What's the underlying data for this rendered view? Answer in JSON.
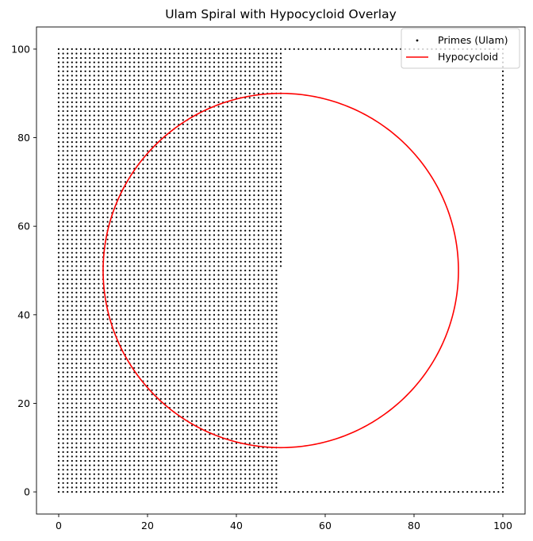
{
  "chart_data": {
    "type": "scatter",
    "title": "Ulam Spiral with Hypocycloid Overlay",
    "xlabel": "",
    "ylabel": "",
    "xlim": [
      -5,
      105
    ],
    "ylim": [
      -5,
      105
    ],
    "xticks": [
      0,
      20,
      40,
      60,
      80,
      100
    ],
    "yticks": [
      0,
      20,
      40,
      60,
      80,
      100
    ],
    "grid": false,
    "legend_position": "top-right",
    "series": [
      {
        "name": "Primes (Ulam)",
        "kind": "scatter",
        "color": "#000000",
        "point_regions": [
          {
            "x_from": 0,
            "x_to": 49,
            "x_step": 1,
            "y_from": 0,
            "y_to": 100,
            "y_step": 1
          },
          {
            "x_from": 50,
            "x_to": 50,
            "x_step": 1,
            "y_from": 51,
            "y_to": 100,
            "y_step": 1
          },
          {
            "x_from": 51,
            "x_to": 100,
            "x_step": 1,
            "y_from": 100,
            "y_to": 100,
            "y_step": 1
          },
          {
            "x_from": 100,
            "x_to": 100,
            "x_step": 1,
            "y_from": 0,
            "y_to": 99,
            "y_step": 1
          },
          {
            "x_from": 50,
            "x_to": 99,
            "x_step": 1,
            "y_from": 0,
            "y_to": 0,
            "y_step": 1
          }
        ]
      },
      {
        "name": "Hypocycloid",
        "kind": "line",
        "color": "#ff0000",
        "curve": {
          "shape": "circle",
          "center": [
            50,
            50
          ],
          "radius": 40
        }
      }
    ]
  }
}
